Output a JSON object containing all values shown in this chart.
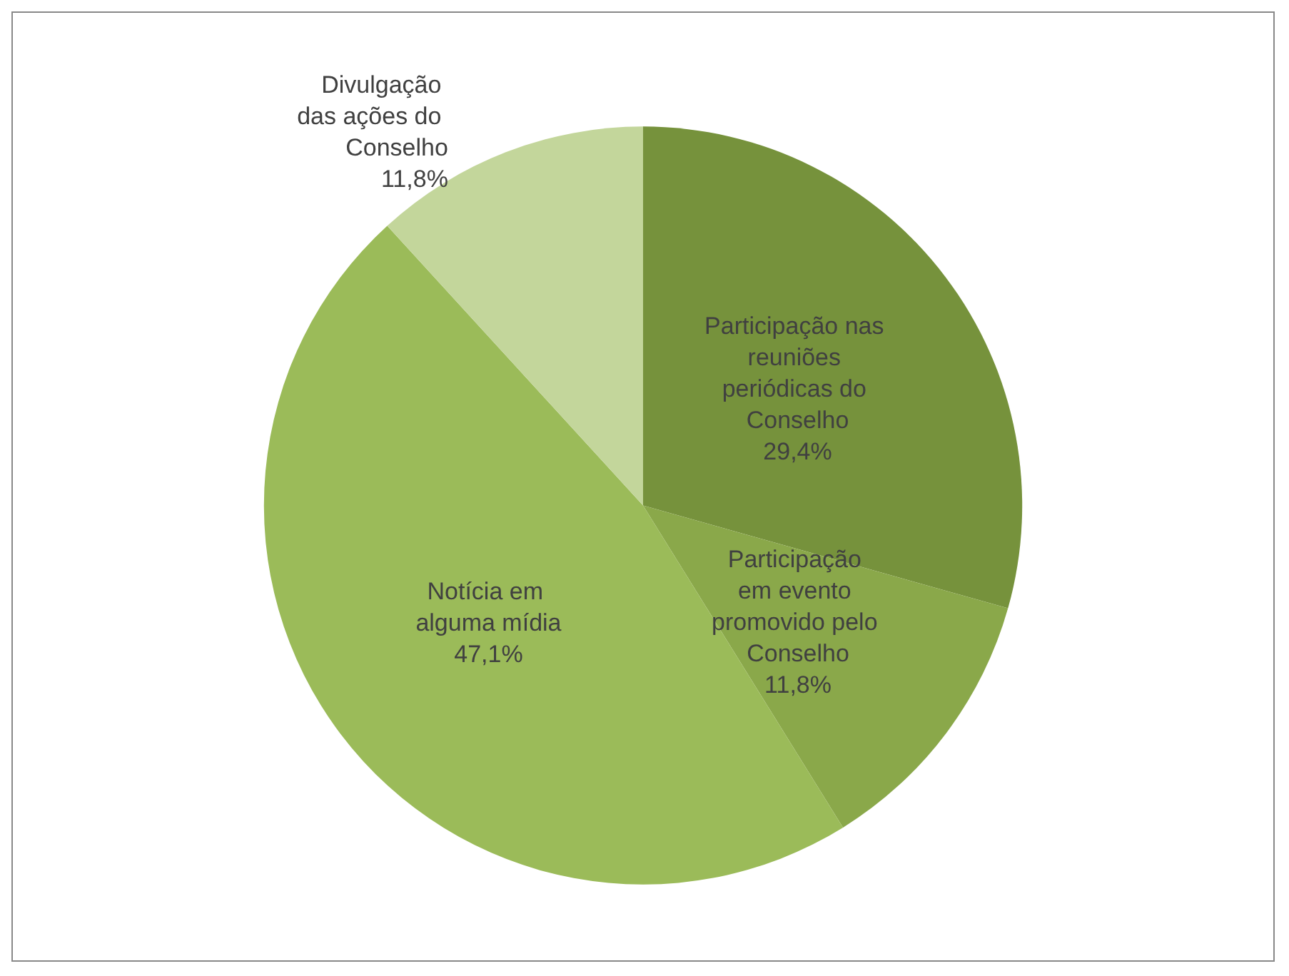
{
  "chart_data": {
    "type": "pie",
    "categories": [
      "Participação nas reuniões periódicas do Conselho",
      "Participação em evento promovido pelo Conselho",
      "Notícia em alguma mídia",
      "Divulgação das ações do Conselho"
    ],
    "values": [
      29.4,
      11.8,
      47.1,
      11.8
    ],
    "colors": [
      "#76923c",
      "#8aa84a",
      "#9bbb59",
      "#c3d69b"
    ],
    "value_labels": [
      "29,4%",
      "11,8%",
      "47,1%",
      "11,8%"
    ],
    "legend": false
  }
}
